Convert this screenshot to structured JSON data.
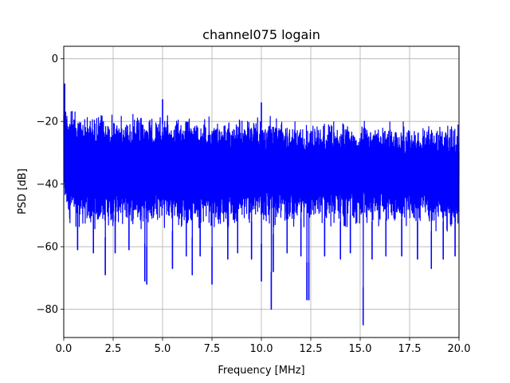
{
  "chart_data": {
    "type": "line",
    "title": "channel075 logain",
    "xlabel": "Frequency [MHz]",
    "ylabel": "PSD [dB]",
    "xlim": [
      0,
      20
    ],
    "ylim": [
      -89,
      4
    ],
    "grid": true,
    "legend": "none",
    "x_ticks": [
      0.0,
      2.5,
      5.0,
      7.5,
      10.0,
      12.5,
      15.0,
      17.5,
      20.0
    ],
    "x_tick_labels": [
      "0.0",
      "2.5",
      "5.0",
      "7.5",
      "10.0",
      "12.5",
      "15.0",
      "17.5",
      "20.0"
    ],
    "y_ticks": [
      0,
      -20,
      -40,
      -60,
      -80
    ],
    "y_tick_labels": [
      "0",
      "−20",
      "−40",
      "−60",
      "−80"
    ],
    "series": [
      {
        "color": "#0000ff",
        "envelope": {
          "x": [
            0.0,
            0.05,
            0.1,
            0.2,
            0.3,
            0.5,
            1.0,
            1.5,
            2.0,
            2.5,
            3.0,
            4.0,
            5.0,
            6.0,
            7.0,
            8.0,
            9.0,
            10.0,
            11.0,
            12.0,
            13.0,
            14.0,
            15.0,
            16.0,
            17.0,
            18.0,
            19.0,
            20.0
          ],
          "upper": [
            -8,
            -10,
            -12,
            -13,
            -14,
            -15,
            -16,
            -16,
            -16,
            -16.5,
            -16.5,
            -17,
            -17,
            -17,
            -17,
            -17.5,
            -17.5,
            -18,
            -18,
            -18.5,
            -18.5,
            -18.5,
            -19,
            -19,
            -19,
            -19.5,
            -19.5,
            -20
          ],
          "lower": [
            -48,
            -50,
            -52,
            -53,
            -54,
            -55,
            -56,
            -56,
            -55,
            -55,
            -55,
            -55,
            -55,
            -55,
            -55,
            -55,
            -55,
            -55,
            -55,
            -55,
            -55,
            -55,
            -55,
            -55,
            -55,
            -55,
            -56,
            -57
          ]
        },
        "peaks": [
          {
            "x": 0.05,
            "y": -8
          },
          {
            "x": 5.0,
            "y": -13
          },
          {
            "x": 10.0,
            "y": -14
          }
        ],
        "dips": [
          {
            "x": 0.7,
            "y": -61
          },
          {
            "x": 1.5,
            "y": -62
          },
          {
            "x": 2.1,
            "y": -69
          },
          {
            "x": 2.6,
            "y": -62
          },
          {
            "x": 3.3,
            "y": -61
          },
          {
            "x": 4.1,
            "y": -71
          },
          {
            "x": 4.2,
            "y": -72
          },
          {
            "x": 5.5,
            "y": -67
          },
          {
            "x": 6.2,
            "y": -63
          },
          {
            "x": 6.5,
            "y": -69
          },
          {
            "x": 6.9,
            "y": -63
          },
          {
            "x": 7.5,
            "y": -72
          },
          {
            "x": 8.3,
            "y": -64
          },
          {
            "x": 8.8,
            "y": -62
          },
          {
            "x": 9.5,
            "y": -64
          },
          {
            "x": 10.0,
            "y": -71
          },
          {
            "x": 10.5,
            "y": -80
          },
          {
            "x": 10.6,
            "y": -68
          },
          {
            "x": 11.3,
            "y": -62
          },
          {
            "x": 12.0,
            "y": -63
          },
          {
            "x": 12.3,
            "y": -77
          },
          {
            "x": 12.4,
            "y": -77
          },
          {
            "x": 13.2,
            "y": -63
          },
          {
            "x": 14.0,
            "y": -64
          },
          {
            "x": 14.5,
            "y": -62
          },
          {
            "x": 15.15,
            "y": -85
          },
          {
            "x": 15.6,
            "y": -64
          },
          {
            "x": 16.3,
            "y": -63
          },
          {
            "x": 17.1,
            "y": -63
          },
          {
            "x": 17.9,
            "y": -64
          },
          {
            "x": 18.6,
            "y": -67
          },
          {
            "x": 19.2,
            "y": -64
          },
          {
            "x": 19.8,
            "y": -63
          }
        ]
      }
    ]
  }
}
